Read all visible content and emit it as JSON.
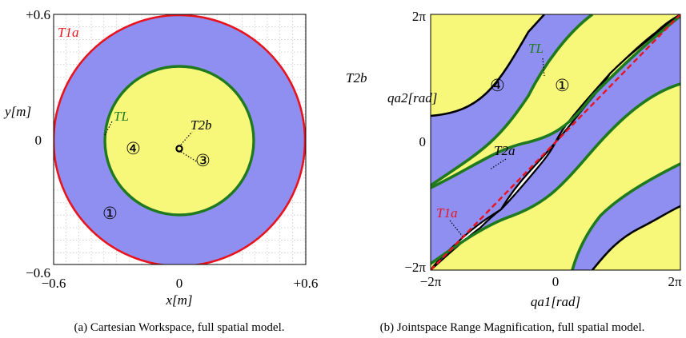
{
  "colors": {
    "outer_region": "#8f8ff2",
    "inner_region": "#f7f779",
    "t1a": "#e8131c",
    "tl": "#1f7a1f",
    "frame": "#000000"
  },
  "panel_a": {
    "caption": "(a) Cartesian Workspace, full spatial model.",
    "x_label": "x[m]",
    "y_label": "y[m]",
    "x_ticks": [
      "−0.6",
      "0",
      "+0.6"
    ],
    "y_ticks": [
      "+0.6",
      "0",
      "−0.6"
    ],
    "labels": {
      "t1a": "T1a",
      "tl": "TL",
      "t2b": "T2b",
      "region_1": "①",
      "region_3": "③",
      "region_4": "④"
    }
  },
  "panel_b": {
    "caption": "(b) Jointspace Range Magnification, full spatial model.",
    "x_label": "qa1[rad]",
    "y_label": "qa2[rad]",
    "x_ticks": [
      "−2π",
      "0",
      "2π"
    ],
    "y_ticks": [
      "2π",
      "0",
      "−2π"
    ],
    "labels": {
      "t1a": "T1a",
      "tl": "TL",
      "t2a": "T2a",
      "t2b": "T2b",
      "region_1": "①",
      "region_4": "④"
    }
  }
}
